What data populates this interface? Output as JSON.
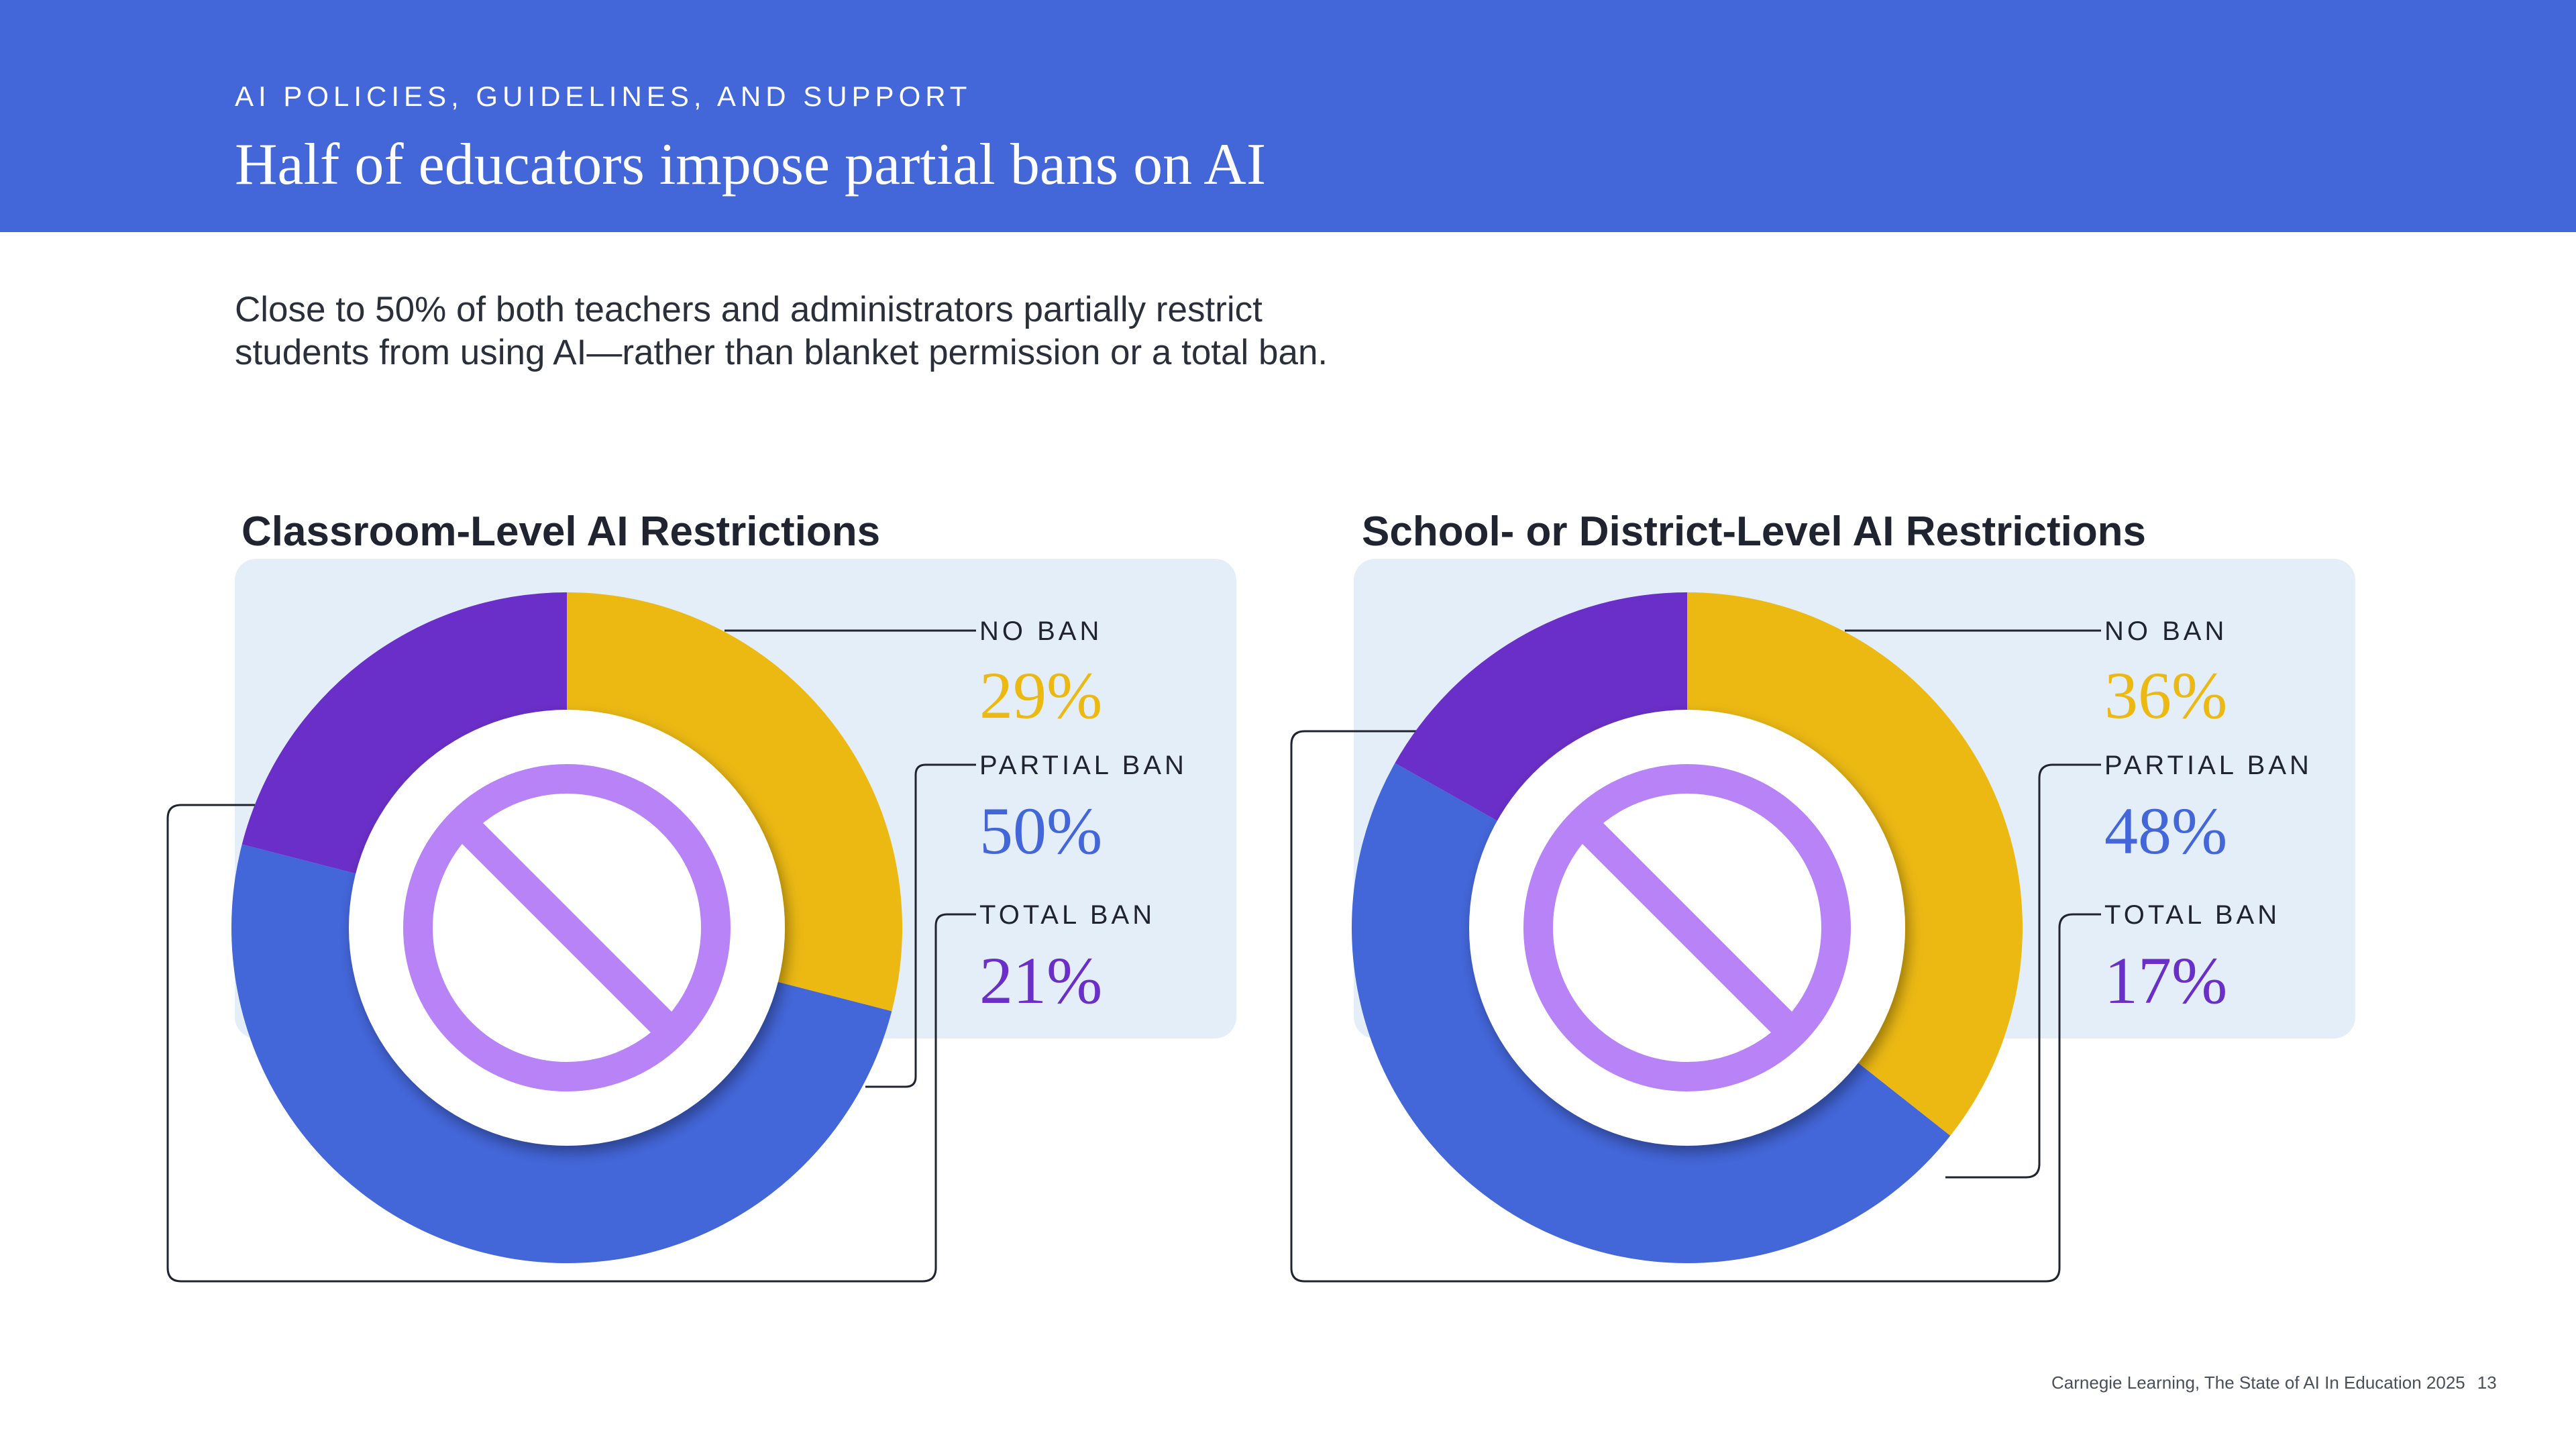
{
  "header": {
    "eyebrow": "AI POLICIES, GUIDELINES, AND SUPPORT",
    "title": "Half of educators impose partial bans on AI"
  },
  "intro": {
    "line1": "Close to 50% of both teachers and administrators partially restrict",
    "line2": "students from using AI—rather than blanket permission or a total ban."
  },
  "colors": {
    "no_ban": "#ecb913",
    "partial_ban": "#4366d9",
    "total_ban": "#6a2fc8",
    "panel_bg": "#e4eef8",
    "header_bg": "#4366d9",
    "icon": "#b783f6"
  },
  "chart_data": [
    {
      "type": "pie",
      "title": "Classroom-Level AI Restrictions",
      "categories": [
        "NO BAN",
        "PARTIAL BAN",
        "TOTAL BAN"
      ],
      "values": [
        29,
        50,
        21
      ],
      "labels": [
        "29%",
        "50%",
        "21%"
      ],
      "icon": "prohibited-icon"
    },
    {
      "type": "pie",
      "title": "School- or District-Level AI Restrictions",
      "categories": [
        "NO BAN",
        "PARTIAL BAN",
        "TOTAL BAN"
      ],
      "values": [
        36,
        48,
        17
      ],
      "labels": [
        "36%",
        "48%",
        "17%"
      ],
      "icon": "prohibited-icon"
    }
  ],
  "footer": {
    "source": "Carnegie Learning, The State of AI In Education 2025",
    "page": "13"
  }
}
